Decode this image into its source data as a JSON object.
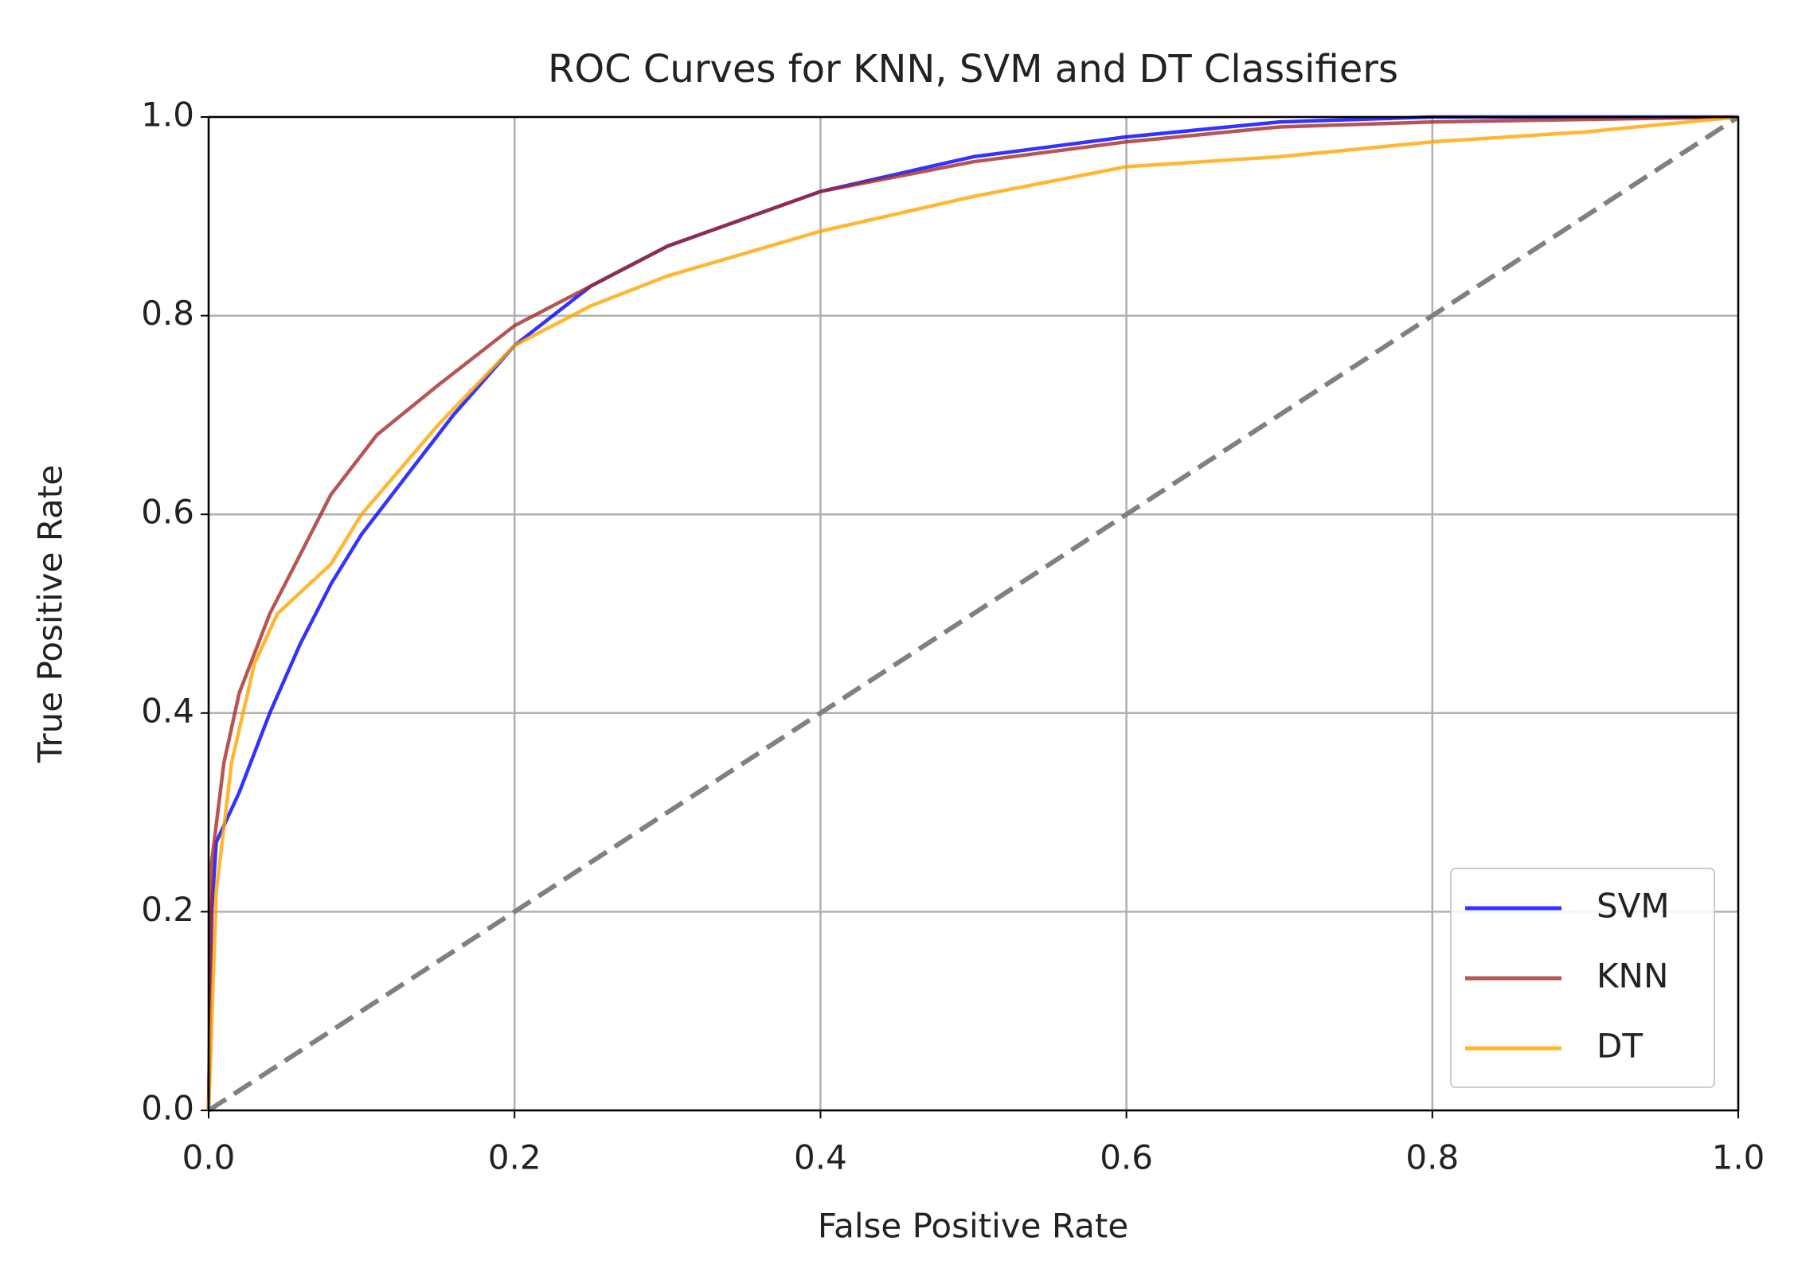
{
  "chart_data": {
    "type": "line",
    "title": "ROC Curves for KNN, SVM and DT Classifiers",
    "x_label": "False Positive Rate",
    "y_label": "True Positive Rate",
    "xlim": [
      0,
      1
    ],
    "ylim": [
      0,
      1
    ],
    "xticks": [
      {
        "value": 0,
        "label": "0.0"
      },
      0.2,
      0.4,
      0.6,
      0.8,
      {
        "value": 1,
        "label": "1.0"
      }
    ],
    "yticks": [
      {
        "value": 0,
        "label": "0.0"
      },
      0.2,
      0.4,
      0.6,
      0.8,
      {
        "value": 1,
        "label": "1.0"
      }
    ],
    "grid": true,
    "legend": "lower right",
    "series": [
      {
        "name": "SVM",
        "color": "#0000ff",
        "x": [
          0,
          0.002,
          0.005,
          0.02,
          0.04,
          0.06,
          0.08,
          0.1,
          0.13,
          0.16,
          0.2,
          0.25,
          0.3,
          0.4,
          0.5,
          0.6,
          0.7,
          0.8,
          1
        ],
        "values": [
          0,
          0.2,
          0.27,
          0.32,
          0.4,
          0.47,
          0.53,
          0.58,
          0.64,
          0.7,
          0.77,
          0.83,
          0.87,
          0.925,
          0.96,
          0.98,
          0.995,
          1,
          1
        ]
      },
      {
        "name": "KNN",
        "color": "#a52a2a",
        "x": [
          0,
          0.002,
          0.01,
          0.02,
          0.04,
          0.06,
          0.08,
          0.11,
          0.15,
          0.2,
          0.25,
          0.3,
          0.4,
          0.5,
          0.6,
          0.7,
          0.8,
          1
        ],
        "values": [
          0,
          0.25,
          0.35,
          0.42,
          0.5,
          0.56,
          0.62,
          0.68,
          0.73,
          0.79,
          0.83,
          0.87,
          0.925,
          0.955,
          0.975,
          0.99,
          0.995,
          1
        ]
      },
      {
        "name": "DT",
        "color": "#ffa500",
        "x": [
          0,
          0.005,
          0.015,
          0.03,
          0.045,
          0.08,
          0.1,
          0.15,
          0.2,
          0.25,
          0.3,
          0.4,
          0.5,
          0.6,
          0.7,
          0.8,
          0.9,
          1
        ],
        "values": [
          0,
          0.22,
          0.35,
          0.45,
          0.5,
          0.55,
          0.6,
          0.69,
          0.77,
          0.81,
          0.84,
          0.885,
          0.92,
          0.95,
          0.96,
          0.975,
          0.985,
          1
        ]
      },
      {
        "color": "#808080",
        "dash": true,
        "x": [
          0,
          1
        ],
        "values": [
          0,
          1
        ]
      }
    ]
  }
}
